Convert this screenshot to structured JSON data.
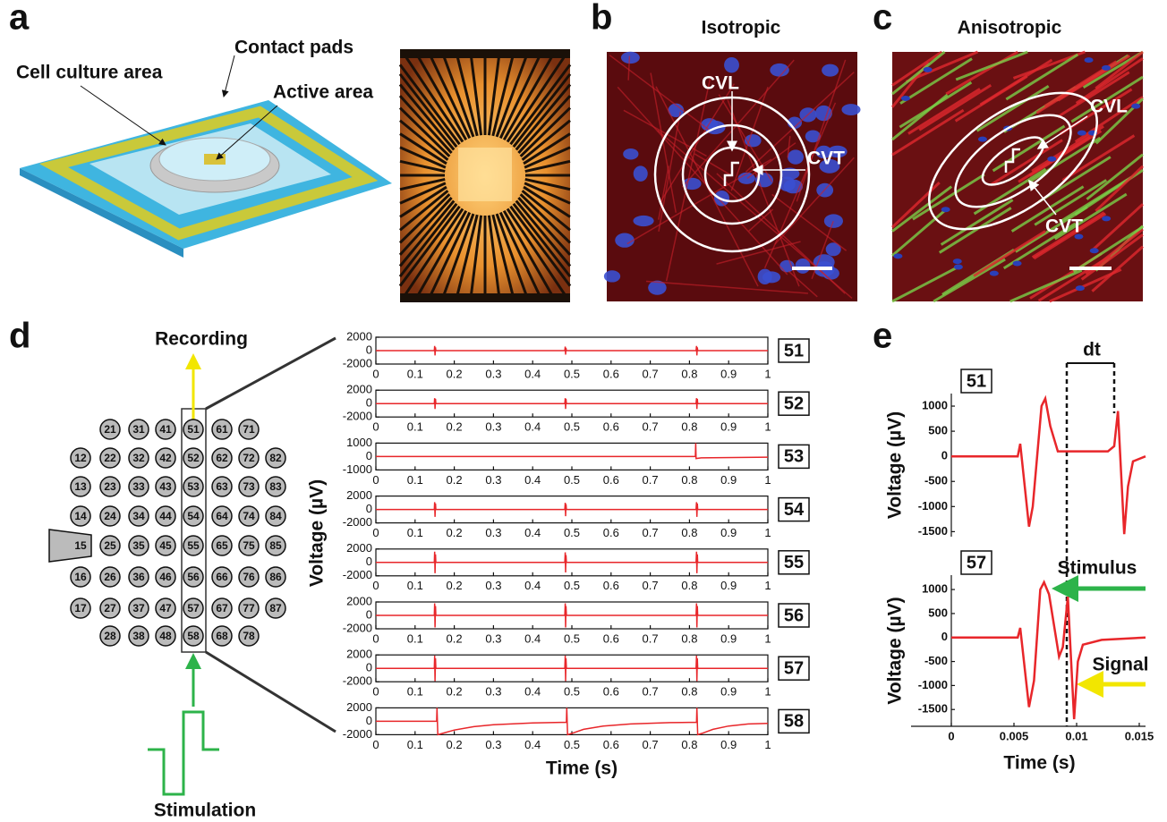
{
  "panel_labels": [
    "a",
    "b",
    "c",
    "d",
    "e"
  ],
  "panel_a": {
    "labels": [
      "Contact pads",
      "Cell culture area",
      "Active area"
    ]
  },
  "panel_b": {
    "title": "Isotropic",
    "labels": [
      "CVL",
      "CVT"
    ]
  },
  "panel_c": {
    "title": "Anisotropic",
    "labels": [
      "CVL",
      "CVT"
    ]
  },
  "panel_d": {
    "recording": "Recording",
    "stimulation": "Stimulation",
    "xlabel": "Time (s)",
    "ylabel": "Voltage (µV)",
    "electrodes": [
      [
        "12",
        "13",
        "14",
        "15",
        "16",
        "17"
      ],
      [
        "21",
        "22",
        "23",
        "24",
        "25",
        "26",
        "27",
        "28"
      ],
      [
        "31",
        "32",
        "33",
        "34",
        "35",
        "36",
        "37",
        "38"
      ],
      [
        "41",
        "42",
        "43",
        "44",
        "45",
        "46",
        "47",
        "48"
      ],
      [
        "51",
        "52",
        "53",
        "54",
        "55",
        "56",
        "57",
        "58"
      ],
      [
        "61",
        "62",
        "63",
        "64",
        "65",
        "66",
        "67",
        "68"
      ],
      [
        "71",
        "72",
        "73",
        "74",
        "75",
        "76",
        "77",
        "78"
      ],
      [
        "82",
        "83",
        "84",
        "85",
        "86",
        "87"
      ]
    ]
  },
  "panel_e": {
    "annotations": [
      "dt",
      "Stimulus",
      "Signal"
    ]
  },
  "chart_data": [
    {
      "type": "line",
      "x": [
        0,
        0.149,
        0.15,
        0.151,
        0.152,
        0.153,
        0.482,
        0.483,
        0.484,
        0.485,
        0.486,
        0.817,
        0.818,
        0.819,
        0.82,
        0.821,
        1
      ],
      "xlim": [
        0,
        1
      ],
      "xticks": [
        0,
        0.1,
        0.2,
        0.3,
        0.4,
        0.5,
        0.6,
        0.7,
        0.8,
        0.9,
        1
      ],
      "ylim": [
        -2000,
        2000
      ],
      "yticks": [
        -2000,
        0,
        2000
      ],
      "series": [
        {
          "name": "51",
          "color": "#e8262a",
          "values": [
            0,
            0,
            700,
            -700,
            500,
            0,
            0,
            600,
            -600,
            400,
            0,
            0,
            700,
            -700,
            500,
            0,
            0
          ]
        }
      ]
    },
    {
      "type": "line",
      "x": [
        0,
        0.149,
        0.15,
        0.151,
        0.152,
        0.153,
        0.482,
        0.483,
        0.484,
        0.485,
        0.486,
        0.817,
        0.818,
        0.819,
        0.82,
        0.821,
        1
      ],
      "xlim": [
        0,
        1
      ],
      "xticks": [
        0,
        0.1,
        0.2,
        0.3,
        0.4,
        0.5,
        0.6,
        0.7,
        0.8,
        0.9,
        1
      ],
      "ylim": [
        -2000,
        2000
      ],
      "yticks": [
        -2000,
        0,
        2000
      ],
      "series": [
        {
          "name": "52",
          "color": "#e8262a",
          "values": [
            0,
            0,
            800,
            -800,
            700,
            0,
            0,
            800,
            -800,
            700,
            0,
            0,
            800,
            -800,
            700,
            0,
            0
          ]
        }
      ]
    },
    {
      "type": "line",
      "x": [
        0,
        0.815,
        0.816,
        0.817,
        0.83,
        1
      ],
      "xlim": [
        0,
        1
      ],
      "xticks": [
        0,
        0.1,
        0.2,
        0.3,
        0.4,
        0.5,
        0.6,
        0.7,
        0.8,
        0.9,
        1
      ],
      "ylim": [
        -1000,
        1000
      ],
      "yticks": [
        -1000,
        0,
        1000
      ],
      "series": [
        {
          "name": "53",
          "color": "#e8262a",
          "values": [
            0,
            0,
            1000,
            -150,
            -100,
            -50
          ]
        }
      ]
    },
    {
      "type": "line",
      "x": [
        0,
        0.149,
        0.15,
        0.151,
        0.152,
        0.153,
        0.482,
        0.483,
        0.484,
        0.485,
        0.486,
        0.817,
        0.818,
        0.819,
        0.82,
        0.821,
        1
      ],
      "xlim": [
        0,
        1
      ],
      "xticks": [
        0,
        0.1,
        0.2,
        0.3,
        0.4,
        0.5,
        0.6,
        0.7,
        0.8,
        0.9,
        1
      ],
      "ylim": [
        -2000,
        2000
      ],
      "yticks": [
        -2000,
        0,
        2000
      ],
      "series": [
        {
          "name": "54",
          "color": "#e8262a",
          "values": [
            0,
            0,
            1100,
            -1100,
            900,
            0,
            0,
            1000,
            -1000,
            800,
            0,
            0,
            1100,
            -1100,
            900,
            0,
            0
          ]
        }
      ]
    },
    {
      "type": "line",
      "x": [
        0,
        0.149,
        0.15,
        0.151,
        0.152,
        0.153,
        0.482,
        0.483,
        0.484,
        0.485,
        0.486,
        0.817,
        0.818,
        0.819,
        0.82,
        0.821,
        1
      ],
      "xlim": [
        0,
        1
      ],
      "xticks": [
        0,
        0.1,
        0.2,
        0.3,
        0.4,
        0.5,
        0.6,
        0.7,
        0.8,
        0.9,
        1
      ],
      "ylim": [
        -2000,
        2000
      ],
      "yticks": [
        -2000,
        0,
        2000
      ],
      "series": [
        {
          "name": "55",
          "color": "#e8262a",
          "values": [
            0,
            0,
            1600,
            -1600,
            1200,
            0,
            0,
            1500,
            -1500,
            1100,
            0,
            0,
            1600,
            -1600,
            1200,
            0,
            0
          ]
        }
      ]
    },
    {
      "type": "line",
      "x": [
        0,
        0.149,
        0.15,
        0.151,
        0.152,
        0.153,
        0.482,
        0.483,
        0.484,
        0.485,
        0.486,
        0.817,
        0.818,
        0.819,
        0.82,
        0.821,
        1
      ],
      "xlim": [
        0,
        1
      ],
      "xticks": [
        0,
        0.1,
        0.2,
        0.3,
        0.4,
        0.5,
        0.6,
        0.7,
        0.8,
        0.9,
        1
      ],
      "ylim": [
        -2000,
        2000
      ],
      "yticks": [
        -2000,
        0,
        2000
      ],
      "series": [
        {
          "name": "56",
          "color": "#e8262a",
          "values": [
            0,
            0,
            1800,
            -1800,
            1400,
            0,
            0,
            1800,
            -1800,
            1400,
            0,
            0,
            1800,
            -1800,
            1400,
            0,
            0
          ]
        }
      ]
    },
    {
      "type": "line",
      "x": [
        0,
        0.149,
        0.15,
        0.151,
        0.152,
        0.153,
        0.482,
        0.483,
        0.484,
        0.485,
        0.486,
        0.817,
        0.818,
        0.819,
        0.82,
        0.821,
        1
      ],
      "xlim": [
        0,
        1
      ],
      "xticks": [
        0,
        0.1,
        0.2,
        0.3,
        0.4,
        0.5,
        0.6,
        0.7,
        0.8,
        0.9,
        1
      ],
      "ylim": [
        -2000,
        2000
      ],
      "yticks": [
        -2000,
        0,
        2000
      ],
      "series": [
        {
          "name": "57",
          "color": "#e8262a",
          "values": [
            0,
            0,
            1900,
            -1900,
            1500,
            0,
            0,
            1900,
            -1900,
            1500,
            0,
            0,
            1900,
            -1900,
            1500,
            0,
            0
          ]
        }
      ]
    },
    {
      "type": "line",
      "x": [
        0,
        0.155,
        0.156,
        0.158,
        0.17,
        0.2,
        0.25,
        0.3,
        0.4,
        0.486,
        0.487,
        0.489,
        0.5,
        0.53,
        0.58,
        0.65,
        0.75,
        0.818,
        0.819,
        0.821,
        0.832,
        0.86,
        0.9,
        0.95,
        1
      ],
      "xlim": [
        0,
        1
      ],
      "xticks": [
        0,
        0.1,
        0.2,
        0.3,
        0.4,
        0.5,
        0.6,
        0.7,
        0.8,
        0.9,
        1
      ],
      "ylim": [
        -2000,
        2000
      ],
      "yticks": [
        -2000,
        0,
        2000
      ],
      "series": [
        {
          "name": "58",
          "color": "#e8262a",
          "values": [
            0,
            0,
            2000,
            -2000,
            -1800,
            -1300,
            -800,
            -500,
            -250,
            -150,
            2000,
            -2000,
            -1800,
            -1200,
            -700,
            -400,
            -200,
            -150,
            2000,
            -2000,
            -1800,
            -1200,
            -700,
            -400,
            -300
          ]
        }
      ]
    },
    {
      "type": "line",
      "ylabel": "Voltage (µV)",
      "x": [
        0,
        0.0053,
        0.0055,
        0.0062,
        0.0065,
        0.0072,
        0.0075,
        0.0079,
        0.0085,
        0.0125,
        0.013,
        0.0133,
        0.0138,
        0.0141,
        0.0145,
        0.0155
      ],
      "xlim": [
        0,
        0.0155
      ],
      "ylim": [
        -1600,
        1250
      ],
      "yticks": [
        -1500,
        -1000,
        -500,
        0,
        500,
        1000
      ],
      "series": [
        {
          "name": "51",
          "color": "#e8262a",
          "values": [
            0,
            0,
            250,
            -1400,
            -1000,
            1000,
            1150,
            600,
            100,
            100,
            200,
            900,
            -1550,
            -600,
            -100,
            0
          ]
        }
      ]
    },
    {
      "type": "line",
      "ylabel": "Voltage (µV)",
      "xlabel": "Time (s)",
      "x": [
        0,
        0.0053,
        0.0055,
        0.0062,
        0.0066,
        0.0071,
        0.0074,
        0.0078,
        0.0086,
        0.0089,
        0.0093,
        0.0098,
        0.0101,
        0.0105,
        0.012,
        0.0155
      ],
      "xlim": [
        0,
        0.0155
      ],
      "xticks": [
        0,
        0.005,
        0.01,
        0.015
      ],
      "ylim": [
        -1850,
        1300
      ],
      "yticks": [
        -1500,
        -1000,
        -500,
        0,
        500,
        1000
      ],
      "series": [
        {
          "name": "57",
          "color": "#e8262a",
          "values": [
            0,
            0,
            200,
            -1450,
            -900,
            1000,
            1150,
            900,
            -400,
            -200,
            850,
            -1700,
            -500,
            -150,
            -50,
            0
          ]
        }
      ]
    }
  ]
}
